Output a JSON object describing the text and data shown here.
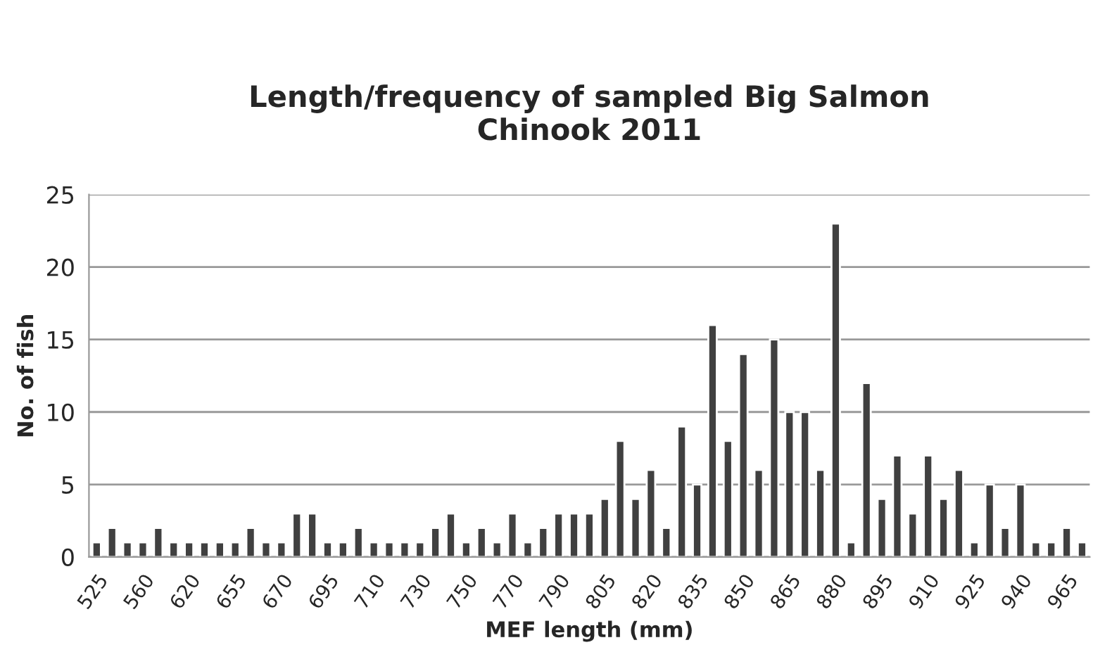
{
  "chart_data": {
    "type": "bar",
    "title": "Length/frequency of sampled Big Salmon\nChinook 2011",
    "xlabel": "MEF length (mm)",
    "ylabel": "No. of fish",
    "categories": [
      "525",
      null,
      null,
      "560",
      null,
      null,
      "620",
      null,
      null,
      "655",
      null,
      null,
      "670",
      null,
      null,
      "695",
      null,
      null,
      "710",
      null,
      null,
      "730",
      null,
      null,
      "750",
      null,
      null,
      "770",
      null,
      null,
      "790",
      null,
      null,
      "805",
      null,
      null,
      "820",
      null,
      null,
      "835",
      null,
      null,
      "850",
      null,
      null,
      "865",
      null,
      null,
      "880",
      null,
      null,
      "895",
      null,
      null,
      "910",
      null,
      null,
      "925",
      null,
      null,
      "940",
      null,
      null,
      "965",
      null
    ],
    "values": [
      1,
      2,
      1,
      1,
      2,
      1,
      1,
      1,
      1,
      1,
      2,
      1,
      1,
      3,
      3,
      1,
      1,
      2,
      1,
      1,
      1,
      1,
      2,
      3,
      1,
      2,
      1,
      3,
      1,
      2,
      3,
      3,
      3,
      4,
      8,
      4,
      6,
      2,
      9,
      5,
      16,
      8,
      14,
      6,
      15,
      10,
      10,
      6,
      23,
      1,
      12,
      4,
      7,
      3,
      7,
      4,
      6,
      1,
      5,
      2,
      5,
      1,
      1,
      2,
      1
    ],
    "color": "#404040",
    "ylim": [
      0,
      25
    ],
    "yticks": [
      0,
      5,
      10,
      15,
      20,
      25
    ],
    "grid": "y"
  }
}
